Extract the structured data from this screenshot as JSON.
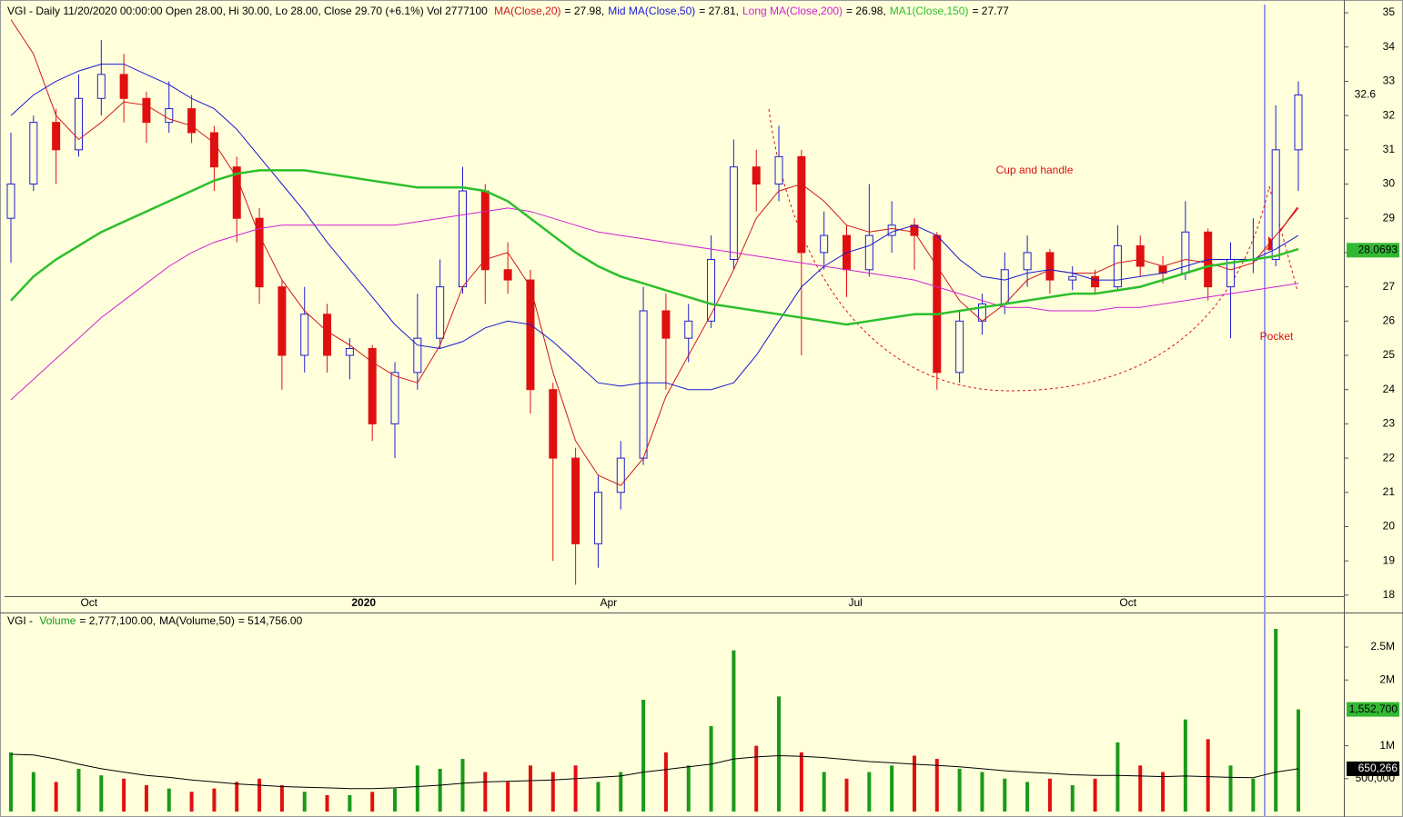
{
  "chart_data": [
    {
      "type": "candlestick",
      "header": "VGI - Daily 11/20/2020 00:00:00 Open 28.00, Hi 30.00, Lo 28.00, Close 29.70 (+6.1%) Vol 2777100",
      "categories": [
        null,
        null,
        null,
        "Oct",
        null,
        null,
        null,
        null,
        null,
        null,
        null,
        null,
        null,
        null,
        null,
        "2020",
        null,
        null,
        null,
        null,
        null,
        null,
        null,
        null,
        null,
        null,
        "Apr",
        null,
        null,
        null,
        null,
        null,
        null,
        null,
        null,
        null,
        null,
        "Jul",
        null,
        null,
        null,
        null,
        null,
        null,
        null,
        null,
        null,
        null,
        null,
        "Oct",
        null,
        null,
        null,
        null,
        null,
        null,
        null,
        null
      ],
      "open": [
        29.0,
        30.0,
        31.8,
        31.0,
        32.5,
        33.2,
        32.5,
        31.8,
        32.2,
        31.5,
        30.5,
        29.0,
        27.0,
        25.0,
        26.2,
        25.0,
        25.2,
        23.0,
        24.5,
        25.5,
        27.0,
        29.8,
        27.5,
        27.2,
        24.0,
        22.0,
        19.5,
        21.0,
        22.0,
        26.3,
        25.5,
        26.0,
        27.8,
        30.5,
        30.0,
        30.8,
        28.0,
        28.5,
        27.5,
        28.5,
        28.8,
        28.5,
        24.5,
        26.0,
        26.5,
        27.5,
        28.0,
        27.2,
        27.3,
        27.0,
        28.2,
        27.6,
        27.4,
        28.6,
        27.0,
        27.8,
        27.8,
        31.0
      ],
      "high": [
        31.5,
        32.0,
        32.2,
        33.2,
        34.2,
        33.8,
        32.7,
        33.0,
        32.6,
        31.7,
        30.8,
        29.3,
        27.2,
        27.0,
        26.5,
        25.5,
        25.3,
        24.8,
        26.8,
        27.8,
        30.5,
        30.0,
        28.3,
        27.5,
        24.2,
        22.3,
        21.5,
        22.5,
        27.0,
        26.8,
        26.5,
        28.5,
        31.3,
        31.0,
        31.7,
        31.0,
        29.2,
        28.8,
        30.0,
        29.5,
        29.0,
        28.6,
        26.3,
        26.8,
        28.0,
        28.5,
        28.1,
        27.6,
        27.5,
        28.8,
        28.5,
        27.9,
        29.5,
        28.7,
        28.3,
        29.0,
        32.3,
        33.0
      ],
      "low": [
        27.7,
        29.8,
        30.0,
        30.8,
        32.0,
        31.8,
        31.2,
        31.5,
        31.2,
        29.8,
        28.3,
        26.5,
        24.0,
        24.5,
        24.5,
        24.3,
        22.5,
        22.0,
        24.0,
        25.2,
        26.8,
        26.5,
        26.8,
        23.3,
        19.0,
        18.3,
        18.8,
        20.5,
        21.8,
        24.0,
        24.8,
        25.8,
        27.5,
        29.2,
        29.5,
        25.0,
        27.5,
        26.7,
        27.3,
        28.0,
        27.5,
        24.0,
        24.2,
        25.6,
        26.2,
        27.0,
        26.8,
        26.9,
        26.8,
        26.9,
        27.3,
        27.1,
        27.2,
        26.6,
        25.5,
        27.4,
        27.6,
        29.8
      ],
      "close": [
        30.0,
        31.8,
        31.0,
        32.5,
        33.2,
        32.5,
        31.8,
        32.2,
        31.5,
        30.5,
        29.0,
        27.0,
        25.0,
        26.2,
        25.0,
        25.2,
        23.0,
        24.5,
        25.5,
        27.0,
        29.8,
        27.5,
        27.2,
        24.0,
        22.0,
        19.5,
        21.0,
        22.0,
        26.3,
        25.5,
        26.0,
        27.8,
        30.5,
        30.0,
        30.8,
        28.0,
        28.5,
        27.5,
        28.5,
        28.8,
        28.5,
        24.5,
        26.0,
        26.5,
        27.5,
        28.0,
        27.2,
        27.3,
        27.0,
        28.2,
        27.6,
        27.4,
        28.6,
        27.0,
        27.8,
        27.8,
        31.0,
        32.6
      ],
      "up_color": "#1f1fd0",
      "down_color": "#e01010",
      "series": [
        {
          "name": "MA(Close,20)",
          "legend_label": "= 27.98,",
          "color": "#d01818",
          "width": 1,
          "values": [
            34.8,
            33.8,
            32.0,
            31.3,
            31.8,
            32.4,
            32.3,
            31.9,
            31.7,
            31.2,
            30.2,
            28.5,
            27.2,
            26.3,
            25.7,
            25.3,
            24.8,
            24.4,
            24.2,
            25.3,
            27.0,
            27.8,
            28.0,
            27.0,
            24.5,
            22.5,
            21.5,
            21.2,
            22.0,
            23.8,
            25.0,
            26.2,
            27.5,
            29.0,
            29.8,
            30.0,
            29.5,
            28.8,
            28.6,
            28.7,
            28.6,
            27.6,
            26.6,
            26.0,
            26.5,
            27.2,
            27.5,
            27.4,
            27.4,
            27.7,
            27.8,
            27.6,
            27.8,
            27.7,
            27.5,
            27.7,
            28.5,
            29.3
          ]
        },
        {
          "name": "Mid MA(Close,50)",
          "legend_label": "= 27.81,",
          "color": "#1818d0",
          "width": 1,
          "values": [
            32.0,
            32.6,
            33.0,
            33.3,
            33.5,
            33.5,
            33.2,
            32.9,
            32.5,
            32.2,
            31.6,
            30.8,
            30.0,
            29.2,
            28.3,
            27.5,
            26.7,
            25.9,
            25.3,
            25.2,
            25.4,
            25.8,
            26.0,
            25.9,
            25.4,
            24.8,
            24.2,
            24.1,
            24.2,
            24.2,
            24.0,
            24.0,
            24.2,
            25.0,
            26.0,
            27.0,
            27.6,
            28.0,
            28.2,
            28.6,
            28.8,
            28.5,
            27.8,
            27.3,
            27.2,
            27.4,
            27.5,
            27.4,
            27.2,
            27.2,
            27.3,
            27.4,
            27.6,
            27.8,
            27.8,
            27.8,
            28.1,
            28.5
          ]
        },
        {
          "name": "Long MA(Close,200)",
          "legend_label": "= 26.98,",
          "color": "#d020d0",
          "width": 1,
          "values": [
            23.7,
            24.3,
            24.9,
            25.5,
            26.1,
            26.6,
            27.1,
            27.6,
            28.0,
            28.3,
            28.5,
            28.7,
            28.8,
            28.8,
            28.8,
            28.8,
            28.8,
            28.8,
            28.9,
            29.0,
            29.1,
            29.2,
            29.3,
            29.2,
            29.0,
            28.8,
            28.6,
            28.5,
            28.4,
            28.3,
            28.2,
            28.1,
            28.0,
            27.9,
            27.8,
            27.7,
            27.6,
            27.5,
            27.4,
            27.3,
            27.2,
            27.0,
            26.8,
            26.6,
            26.4,
            26.4,
            26.3,
            26.3,
            26.3,
            26.4,
            26.4,
            26.5,
            26.6,
            26.7,
            26.8,
            26.9,
            27.0,
            27.1
          ]
        },
        {
          "name": "MA1(Close,150)",
          "legend_label": "= 27.77",
          "color": "#2cbf2c",
          "width": 2.5,
          "values": [
            26.6,
            27.3,
            27.8,
            28.2,
            28.6,
            28.9,
            29.2,
            29.5,
            29.8,
            30.1,
            30.3,
            30.4,
            30.4,
            30.4,
            30.3,
            30.2,
            30.1,
            30.0,
            29.9,
            29.9,
            29.9,
            29.8,
            29.5,
            29.0,
            28.5,
            28.0,
            27.6,
            27.3,
            27.1,
            26.9,
            26.7,
            26.5,
            26.4,
            26.3,
            26.2,
            26.1,
            26.0,
            25.9,
            26.0,
            26.1,
            26.2,
            26.2,
            26.3,
            26.4,
            26.5,
            26.6,
            26.7,
            26.8,
            26.8,
            26.9,
            27.0,
            27.2,
            27.4,
            27.6,
            27.7,
            27.8,
            27.9,
            28.1
          ]
        }
      ],
      "ylim": [
        17.97,
        35.24
      ],
      "yticks": [
        18,
        19,
        20,
        21,
        22,
        23,
        24,
        25,
        26,
        27,
        28,
        29,
        30,
        31,
        32,
        33,
        34,
        35
      ],
      "markers": [
        {
          "value": 32.6,
          "label": "32.6"
        },
        {
          "value": 28.0693,
          "label": "28.0693",
          "fill": "#33b833",
          "text_color": "#000000"
        }
      ],
      "annotations": [
        {
          "text": "Cup and handle",
          "color": "#e01010"
        },
        {
          "text": "Pocket",
          "color": "#e01010"
        }
      ]
    },
    {
      "type": "bar",
      "title": "VGI -",
      "series": [
        {
          "name": "Volume",
          "legend_label": "= 2,777,100.00,",
          "color": "#1a9a1a",
          "up_color": "#1a9a1a",
          "down_color": "#e01010",
          "values": [
            900000,
            600000,
            450000,
            650000,
            550000,
            500000,
            400000,
            350000,
            300000,
            350000,
            450000,
            500000,
            400000,
            300000,
            250000,
            250000,
            300000,
            350000,
            700000,
            650000,
            800000,
            600000,
            450000,
            700000,
            600000,
            700000,
            450000,
            600000,
            1700000,
            900000,
            700000,
            1300000,
            2450000,
            1000000,
            1750000,
            900000,
            600000,
            500000,
            600000,
            700000,
            850000,
            800000,
            650000,
            600000,
            500000,
            450000,
            500000,
            400000,
            500000,
            1050000,
            700000,
            600000,
            1400000,
            1100000,
            700000,
            500000,
            2777100,
            1552700
          ]
        },
        {
          "name": "MA(Volume,50)",
          "legend_label": "= 514,756.00",
          "color": "#000000",
          "values": [
            870000,
            860000,
            800000,
            720000,
            650000,
            600000,
            550000,
            520000,
            480000,
            450000,
            420000,
            400000,
            380000,
            370000,
            360000,
            350000,
            350000,
            360000,
            380000,
            400000,
            430000,
            450000,
            460000,
            470000,
            480000,
            500000,
            520000,
            540000,
            600000,
            640000,
            680000,
            720000,
            800000,
            830000,
            850000,
            840000,
            820000,
            790000,
            760000,
            740000,
            720000,
            700000,
            680000,
            650000,
            620000,
            600000,
            580000,
            560000,
            550000,
            550000,
            540000,
            530000,
            540000,
            530000,
            520000,
            515000,
            600000,
            650266
          ]
        }
      ],
      "ylim": [
        0,
        2970000
      ],
      "yticks": [
        {
          "value": 500000,
          "label": "500,000"
        },
        {
          "value": 1000000,
          "label": "1M"
        },
        {
          "value": 2000000,
          "label": "2M"
        },
        {
          "value": 2500000,
          "label": "2.5M"
        }
      ],
      "markers": [
        {
          "value": 1552700,
          "label": "1,552,700",
          "fill": "#33b833",
          "text_color": "#000000"
        },
        {
          "value": 650266,
          "label": "650,266",
          "fill": "#000000",
          "text_color": "#ffffff"
        }
      ]
    }
  ]
}
